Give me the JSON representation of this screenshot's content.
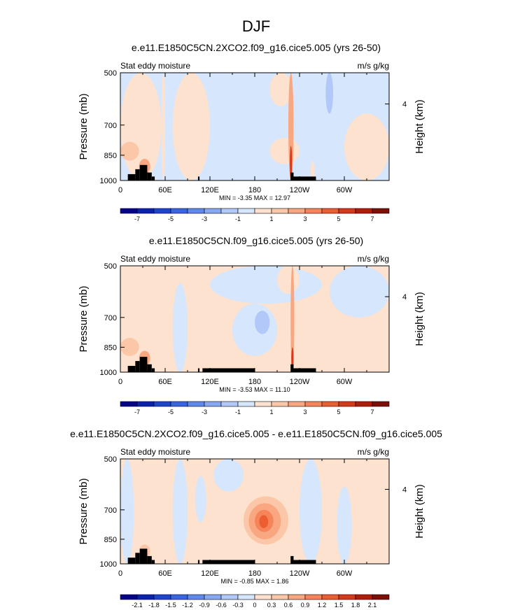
{
  "figure": {
    "title": "DJF"
  },
  "chart_data": [
    {
      "type": "heatmap",
      "title": "e.e11.E1850C5CN.2XCO2.f09_g16.cice5.005 (yrs 26-50)",
      "left_string": "Stat eddy moisture",
      "right_string": "m/s g/kg",
      "ylabel": "Pressure (mb)",
      "ylabel_right": "Height (km)",
      "x_ticks": [
        "0",
        "60E",
        "120E",
        "180",
        "120W",
        "60W"
      ],
      "x_tick_values": [
        0,
        60,
        120,
        180,
        240,
        300
      ],
      "xlim": [
        0,
        360
      ],
      "y_ticks": [
        "500",
        "700",
        "850",
        "1000"
      ],
      "y_tick_values": [
        500,
        700,
        850,
        1000
      ],
      "ylim": [
        1000,
        500
      ],
      "y_scale": "log",
      "right_ticks": [
        "4"
      ],
      "stats": "MIN = -3.35   MAX = 12.97",
      "colorbar": {
        "levels": [
          -8,
          -7,
          -6,
          -5,
          -4,
          -3,
          -2,
          -1,
          0,
          1,
          2,
          3,
          4,
          5,
          6,
          7,
          8
        ],
        "labels": [
          "-7",
          "-5",
          "-3",
          "-1",
          "1",
          "3",
          "5",
          "7"
        ],
        "label_levels": [
          -7,
          -5,
          -3,
          -1,
          1,
          3,
          5,
          7
        ],
        "colors": [
          "#06038c",
          "#0a22b2",
          "#1c45d2",
          "#3866e2",
          "#5e8aec",
          "#87a9f2",
          "#b1c8f8",
          "#d6e6fc",
          "#fde2cf",
          "#fcc7a8",
          "#f9a780",
          "#f5845a",
          "#ec5e32",
          "#d8391a",
          "#b41c0a",
          "#7e0f07"
        ]
      },
      "background_value": -0.3,
      "features": [
        {
          "lon": [
            0,
            55
          ],
          "p": [
            500,
            1000
          ],
          "value": 0.5
        },
        {
          "lon": [
            55,
            60
          ],
          "p": [
            500,
            1000
          ],
          "value": 0.5
        },
        {
          "lon": [
            70,
            120
          ],
          "p": [
            500,
            1000
          ],
          "value": 0.4
        },
        {
          "lon": [
            200,
            230
          ],
          "p": [
            500,
            620
          ],
          "value": 0.5
        },
        {
          "lon": [
            200,
            240
          ],
          "p": [
            760,
            900
          ],
          "value": 0.4
        },
        {
          "lon": [
            255,
            260
          ],
          "p": [
            880,
            1000
          ],
          "value": 0.6
        },
        {
          "lon": [
            275,
            285
          ],
          "p": [
            500,
            650
          ],
          "value": -1.3
        },
        {
          "lon": [
            300,
            360
          ],
          "p": [
            650,
            1000
          ],
          "value": 0.4
        },
        {
          "lon": [
            0,
            25
          ],
          "p": [
            780,
            880
          ],
          "value": 1.3
        },
        {
          "lon": [
            25,
            40
          ],
          "p": [
            870,
            960
          ],
          "value": 2.4
        },
        {
          "lon": [
            225,
            232
          ],
          "p": [
            500,
            1000
          ],
          "value": 2.6
        },
        {
          "lon": [
            227,
            230
          ],
          "p": [
            800,
            1000
          ],
          "value": 5.5
        }
      ],
      "topography": [
        {
          "lon": [
            10,
            20
          ],
          "p_top": 960
        },
        {
          "lon": [
            20,
            26
          ],
          "p_top": 930
        },
        {
          "lon": [
            26,
            36
          ],
          "p_top": 905
        },
        {
          "lon": [
            36,
            42
          ],
          "p_top": 950
        },
        {
          "lon": [
            42,
            46
          ],
          "p_top": 975
        },
        {
          "lon": [
            104,
            106
          ],
          "p_top": 975
        },
        {
          "lon": [
            228,
            232
          ],
          "p_top": 950
        },
        {
          "lon": [
            232,
            262
          ],
          "p_top": 975
        }
      ]
    },
    {
      "type": "heatmap",
      "title": "e.e11.E1850C5CN.f09_g16.cice5.005 (yrs 26-50)",
      "left_string": "Stat eddy moisture",
      "right_string": "m/s g/kg",
      "ylabel": "Pressure (mb)",
      "ylabel_right": "Height (km)",
      "x_ticks": [
        "0",
        "60E",
        "120E",
        "180",
        "120W",
        "60W"
      ],
      "x_tick_values": [
        0,
        60,
        120,
        180,
        240,
        300
      ],
      "xlim": [
        0,
        360
      ],
      "y_ticks": [
        "500",
        "700",
        "850",
        "1000"
      ],
      "y_tick_values": [
        500,
        700,
        850,
        1000
      ],
      "ylim": [
        1000,
        500
      ],
      "y_scale": "log",
      "right_ticks": [
        "4"
      ],
      "stats": "MIN = -3.53   MAX = 11.10",
      "colorbar": {
        "levels": [
          -8,
          -7,
          -6,
          -5,
          -4,
          -3,
          -2,
          -1,
          0,
          1,
          2,
          3,
          4,
          5,
          6,
          7,
          8
        ],
        "labels": [
          "-7",
          "-5",
          "-3",
          "-1",
          "1",
          "3",
          "5",
          "7"
        ],
        "label_levels": [
          -7,
          -5,
          -3,
          -1,
          1,
          3,
          5,
          7
        ],
        "colors": [
          "#06038c",
          "#0a22b2",
          "#1c45d2",
          "#3866e2",
          "#5e8aec",
          "#87a9f2",
          "#b1c8f8",
          "#d6e6fc",
          "#fde2cf",
          "#fcc7a8",
          "#f9a780",
          "#f5845a",
          "#ec5e32",
          "#d8391a",
          "#b41c0a",
          "#7e0f07"
        ]
      },
      "background_value": 0.4,
      "features": [
        {
          "lon": [
            120,
            270
          ],
          "p": [
            500,
            640
          ],
          "value": -0.3
        },
        {
          "lon": [
            150,
            210
          ],
          "p": [
            640,
            900
          ],
          "value": -0.3
        },
        {
          "lon": [
            180,
            200
          ],
          "p": [
            670,
            780
          ],
          "value": -1.4
        },
        {
          "lon": [
            70,
            90
          ],
          "p": [
            560,
            1000
          ],
          "value": -0.3
        },
        {
          "lon": [
            280,
            360
          ],
          "p": [
            500,
            700
          ],
          "value": -0.3
        },
        {
          "lon": [
            210,
            240
          ],
          "p": [
            500,
            600
          ],
          "value": 0.5
        },
        {
          "lon": [
            0,
            25
          ],
          "p": [
            800,
            900
          ],
          "value": 1.3
        },
        {
          "lon": [
            25,
            40
          ],
          "p": [
            870,
            960
          ],
          "value": 2.4
        },
        {
          "lon": [
            228,
            233
          ],
          "p": [
            500,
            1000
          ],
          "value": 2.6
        },
        {
          "lon": [
            229,
            232
          ],
          "p": [
            850,
            1000
          ],
          "value": 5.5
        }
      ],
      "topography": [
        {
          "lon": [
            10,
            20
          ],
          "p_top": 960
        },
        {
          "lon": [
            20,
            26
          ],
          "p_top": 930
        },
        {
          "lon": [
            26,
            36
          ],
          "p_top": 905
        },
        {
          "lon": [
            36,
            42
          ],
          "p_top": 950
        },
        {
          "lon": [
            42,
            46
          ],
          "p_top": 975
        },
        {
          "lon": [
            104,
            106
          ],
          "p_top": 975
        },
        {
          "lon": [
            110,
            180
          ],
          "p_top": 975
        },
        {
          "lon": [
            228,
            232
          ],
          "p_top": 950
        },
        {
          "lon": [
            232,
            262
          ],
          "p_top": 975
        }
      ]
    },
    {
      "type": "heatmap",
      "title": "e.e11.E1850C5CN.2XCO2.f09_g16.cice5.005 - e.e11.E1850C5CN.f09_g16.cice5.005",
      "left_string": "Stat eddy moisture",
      "right_string": "m/s g/kg",
      "ylabel": "Pressure (mb)",
      "ylabel_right": "Height (km)",
      "x_ticks": [
        "0",
        "60E",
        "120E",
        "180",
        "120W",
        "60W"
      ],
      "x_tick_values": [
        0,
        60,
        120,
        180,
        240,
        300
      ],
      "xlim": [
        0,
        360
      ],
      "y_ticks": [
        "500",
        "700",
        "850",
        "1000"
      ],
      "y_tick_values": [
        500,
        700,
        850,
        1000
      ],
      "ylim": [
        1000,
        500
      ],
      "y_scale": "log",
      "right_ticks": [
        "4"
      ],
      "stats": "MIN = -0.85   MAX =   1.86",
      "colorbar": {
        "levels": [
          -2.4,
          -2.1,
          -1.8,
          -1.5,
          -1.2,
          -0.9,
          -0.6,
          -0.3,
          0,
          0.3,
          0.6,
          0.9,
          1.2,
          1.5,
          1.8,
          2.1,
          2.4
        ],
        "labels": [
          "-2.1",
          "-1.8",
          "-1.5",
          "-1.2",
          "-0.9",
          "-0.6",
          "-0.3",
          "0",
          "0.3",
          "0.6",
          "0.9",
          "1.2",
          "1.5",
          "1.8",
          "2.1"
        ],
        "label_levels": [
          -2.1,
          -1.8,
          -1.5,
          -1.2,
          -0.9,
          -0.6,
          -0.3,
          0,
          0.3,
          0.6,
          0.9,
          1.2,
          1.5,
          1.8,
          2.1
        ],
        "colors": [
          "#06038c",
          "#0a22b2",
          "#1c45d2",
          "#3866e2",
          "#5e8aec",
          "#87a9f2",
          "#b1c8f8",
          "#d6e6fc",
          "#fde2cf",
          "#fcc7a8",
          "#f9a780",
          "#f5845a",
          "#ec5e32",
          "#d8391a",
          "#b41c0a",
          "#7e0f07"
        ]
      },
      "background_value": 0.15,
      "features": [
        {
          "lon": [
            0,
            18
          ],
          "p": [
            500,
            1000
          ],
          "value": -0.15
        },
        {
          "lon": [
            70,
            90
          ],
          "p": [
            500,
            1000
          ],
          "value": -0.15
        },
        {
          "lon": [
            100,
            115
          ],
          "p": [
            560,
            760
          ],
          "value": -0.15
        },
        {
          "lon": [
            125,
            165
          ],
          "p": [
            500,
            620
          ],
          "value": -0.15
        },
        {
          "lon": [
            240,
            270
          ],
          "p": [
            500,
            1000
          ],
          "value": -0.15
        },
        {
          "lon": [
            290,
            310
          ],
          "p": [
            600,
            1000
          ],
          "value": -0.15
        },
        {
          "lon": [
            165,
            225
          ],
          "p": [
            640,
            880
          ],
          "value": 0.45
        },
        {
          "lon": [
            172,
            215
          ],
          "p": [
            670,
            850
          ],
          "value": 0.75
        },
        {
          "lon": [
            180,
            205
          ],
          "p": [
            700,
            810
          ],
          "value": 1.05
        },
        {
          "lon": [
            186,
            198
          ],
          "p": [
            725,
            790
          ],
          "value": 1.3
        },
        {
          "lon": [
            25,
            40
          ],
          "p": [
            880,
            960
          ],
          "value": 0.45
        }
      ],
      "topography": [
        {
          "lon": [
            10,
            20
          ],
          "p_top": 960
        },
        {
          "lon": [
            20,
            26
          ],
          "p_top": 930
        },
        {
          "lon": [
            26,
            36
          ],
          "p_top": 905
        },
        {
          "lon": [
            36,
            42
          ],
          "p_top": 950
        },
        {
          "lon": [
            42,
            46
          ],
          "p_top": 975
        },
        {
          "lon": [
            104,
            106
          ],
          "p_top": 975
        },
        {
          "lon": [
            110,
            180
          ],
          "p_top": 975
        },
        {
          "lon": [
            228,
            232
          ],
          "p_top": 950
        },
        {
          "lon": [
            232,
            262
          ],
          "p_top": 975
        }
      ]
    }
  ]
}
